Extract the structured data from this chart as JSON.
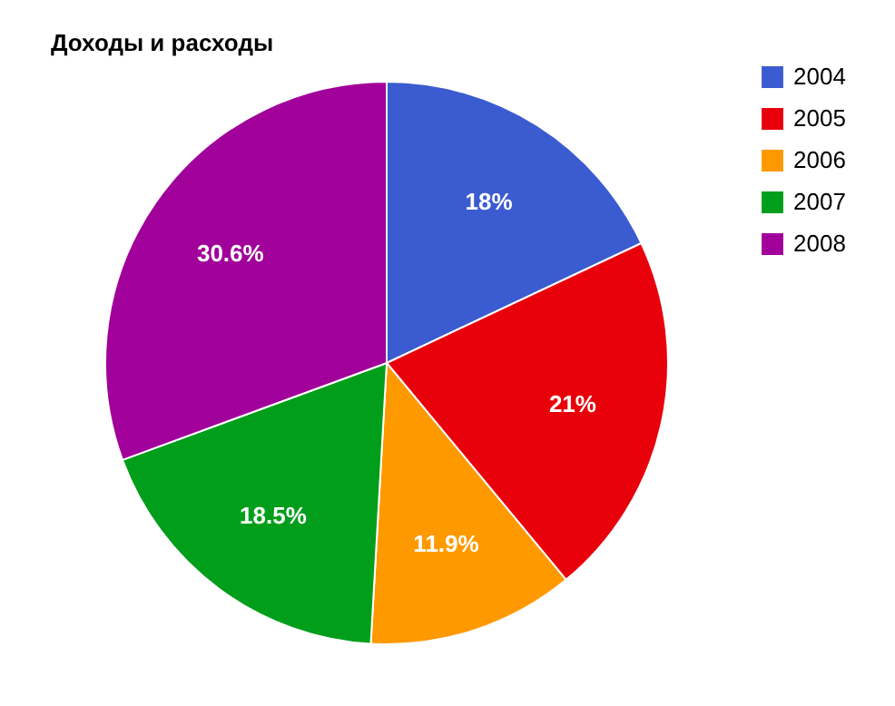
{
  "chart_data": {
    "type": "pie",
    "title": "Доходы и расходы",
    "categories": [
      "2004",
      "2005",
      "2006",
      "2007",
      "2008"
    ],
    "values": [
      18,
      21,
      11.9,
      18.5,
      30.6
    ],
    "colors": [
      "#3b5bd0",
      "#e8000b",
      "#ff9900",
      "#009e1a",
      "#a1009a"
    ],
    "value_labels": [
      "18%",
      "21%",
      "11.9%",
      "18.5%",
      "30.6%"
    ],
    "legend": "top right"
  }
}
